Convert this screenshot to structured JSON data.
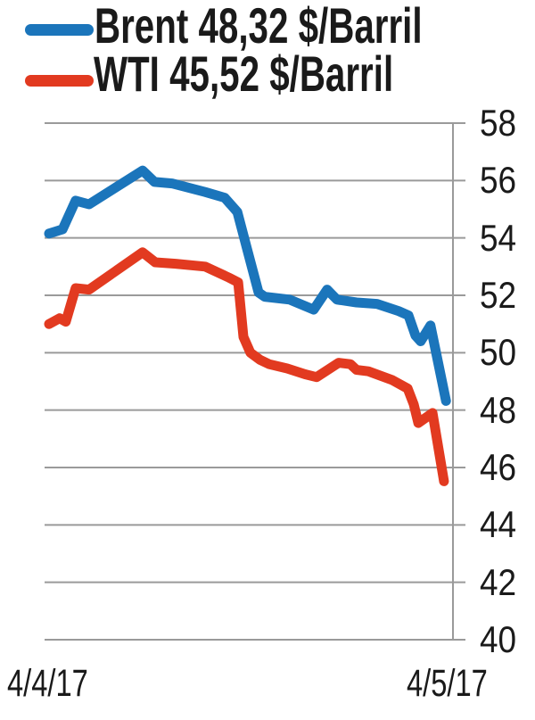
{
  "legend": {
    "items": [
      {
        "label": "Brent 48,32 $/Barril",
        "color": "#1b75bb"
      },
      {
        "label": "WTI 45,52 $/Barril",
        "color": "#e23a20"
      }
    ]
  },
  "x_axis": {
    "left_label": "4/4/17",
    "right_label": "4/5/17"
  },
  "chart_data": {
    "type": "line",
    "title": "",
    "xlabel": "",
    "ylabel": "$/Barril",
    "x_categories": [
      "4/4/17",
      "4/5/17"
    ],
    "y_axis": {
      "min": 40,
      "max": 58,
      "step": 2,
      "ticks": [
        58,
        56,
        54,
        52,
        50,
        48,
        46,
        44,
        42,
        40
      ]
    },
    "grid": "horizontal",
    "legend_position": "top-left",
    "colors": {
      "grid": "#9a9a9a",
      "text": "#1a1a1a",
      "background": "#ffffff"
    },
    "series": [
      {
        "name": "Brent",
        "color": "#1b75bb",
        "last_value": 48.32,
        "last_value_label": "48,32 $/Barril",
        "points": [
          [
            0.011,
            54.15
          ],
          [
            0.044,
            54.3
          ],
          [
            0.076,
            55.3
          ],
          [
            0.109,
            55.17
          ],
          [
            0.24,
            56.35
          ],
          [
            0.269,
            55.95
          ],
          [
            0.312,
            55.9
          ],
          [
            0.393,
            55.6
          ],
          [
            0.441,
            55.4
          ],
          [
            0.472,
            54.9
          ],
          [
            0.496,
            53.6
          ],
          [
            0.524,
            52.1
          ],
          [
            0.539,
            51.95
          ],
          [
            0.6,
            51.85
          ],
          [
            0.659,
            51.5
          ],
          [
            0.692,
            52.2
          ],
          [
            0.716,
            51.85
          ],
          [
            0.764,
            51.75
          ],
          [
            0.814,
            51.7
          ],
          [
            0.867,
            51.45
          ],
          [
            0.891,
            51.3
          ],
          [
            0.908,
            50.6
          ],
          [
            0.921,
            50.4
          ],
          [
            0.945,
            50.95
          ],
          [
            0.983,
            48.32
          ]
        ]
      },
      {
        "name": "WTI",
        "color": "#e23a20",
        "last_value": 45.52,
        "last_value_label": "45,52 $/Barril",
        "points": [
          [
            0.011,
            51.0
          ],
          [
            0.037,
            51.2
          ],
          [
            0.052,
            51.08
          ],
          [
            0.076,
            52.25
          ],
          [
            0.109,
            52.2
          ],
          [
            0.24,
            53.5
          ],
          [
            0.271,
            53.15
          ],
          [
            0.321,
            53.1
          ],
          [
            0.393,
            53.0
          ],
          [
            0.454,
            52.6
          ],
          [
            0.474,
            52.45
          ],
          [
            0.487,
            50.55
          ],
          [
            0.504,
            50.0
          ],
          [
            0.528,
            49.75
          ],
          [
            0.55,
            49.6
          ],
          [
            0.594,
            49.45
          ],
          [
            0.638,
            49.25
          ],
          [
            0.666,
            49.15
          ],
          [
            0.72,
            49.65
          ],
          [
            0.749,
            49.6
          ],
          [
            0.764,
            49.4
          ],
          [
            0.793,
            49.35
          ],
          [
            0.851,
            49.05
          ],
          [
            0.889,
            48.75
          ],
          [
            0.904,
            48.2
          ],
          [
            0.915,
            47.55
          ],
          [
            0.95,
            47.9
          ],
          [
            0.978,
            45.52
          ]
        ]
      }
    ]
  }
}
